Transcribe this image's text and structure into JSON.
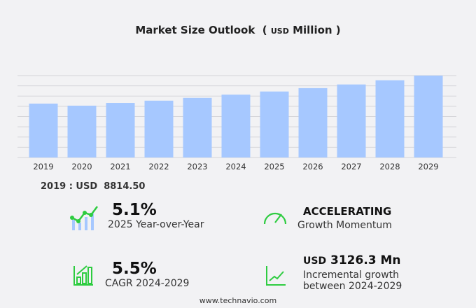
{
  "title": "Market Size Outlook",
  "unit_prefix": "USD",
  "unit_suffix": "Million",
  "chart_data": {
    "type": "bar",
    "title": "Market Size Outlook (USD Million)",
    "categories": [
      "2019",
      "2020",
      "2021",
      "2022",
      "2023",
      "2024",
      "2025",
      "2026",
      "2027",
      "2028",
      "2029"
    ],
    "values": [
      8814.5,
      8480,
      8930,
      9300,
      9760,
      10280,
      10800,
      11350,
      11950,
      12640,
      13406
    ],
    "ylim": [
      0,
      13400
    ],
    "grid": true,
    "bar_color": "#a6c8ff"
  },
  "base_year": {
    "label": "2019 : USD",
    "value": "8814.50"
  },
  "stats": {
    "yoy": {
      "value": "5.1%",
      "label": "2025 Year-over-Year"
    },
    "momentum": {
      "value": "ACCELERATING",
      "label": "Growth Momentum"
    },
    "cagr": {
      "value": "5.5%",
      "label": "CAGR 2024-2029"
    },
    "incremental": {
      "prefix": "USD",
      "value": "3126.3 Mn",
      "label1": "Incremental growth",
      "label2": "between 2024-2029"
    }
  },
  "accent": "#2ecc40",
  "footer": "www.technavio.com"
}
